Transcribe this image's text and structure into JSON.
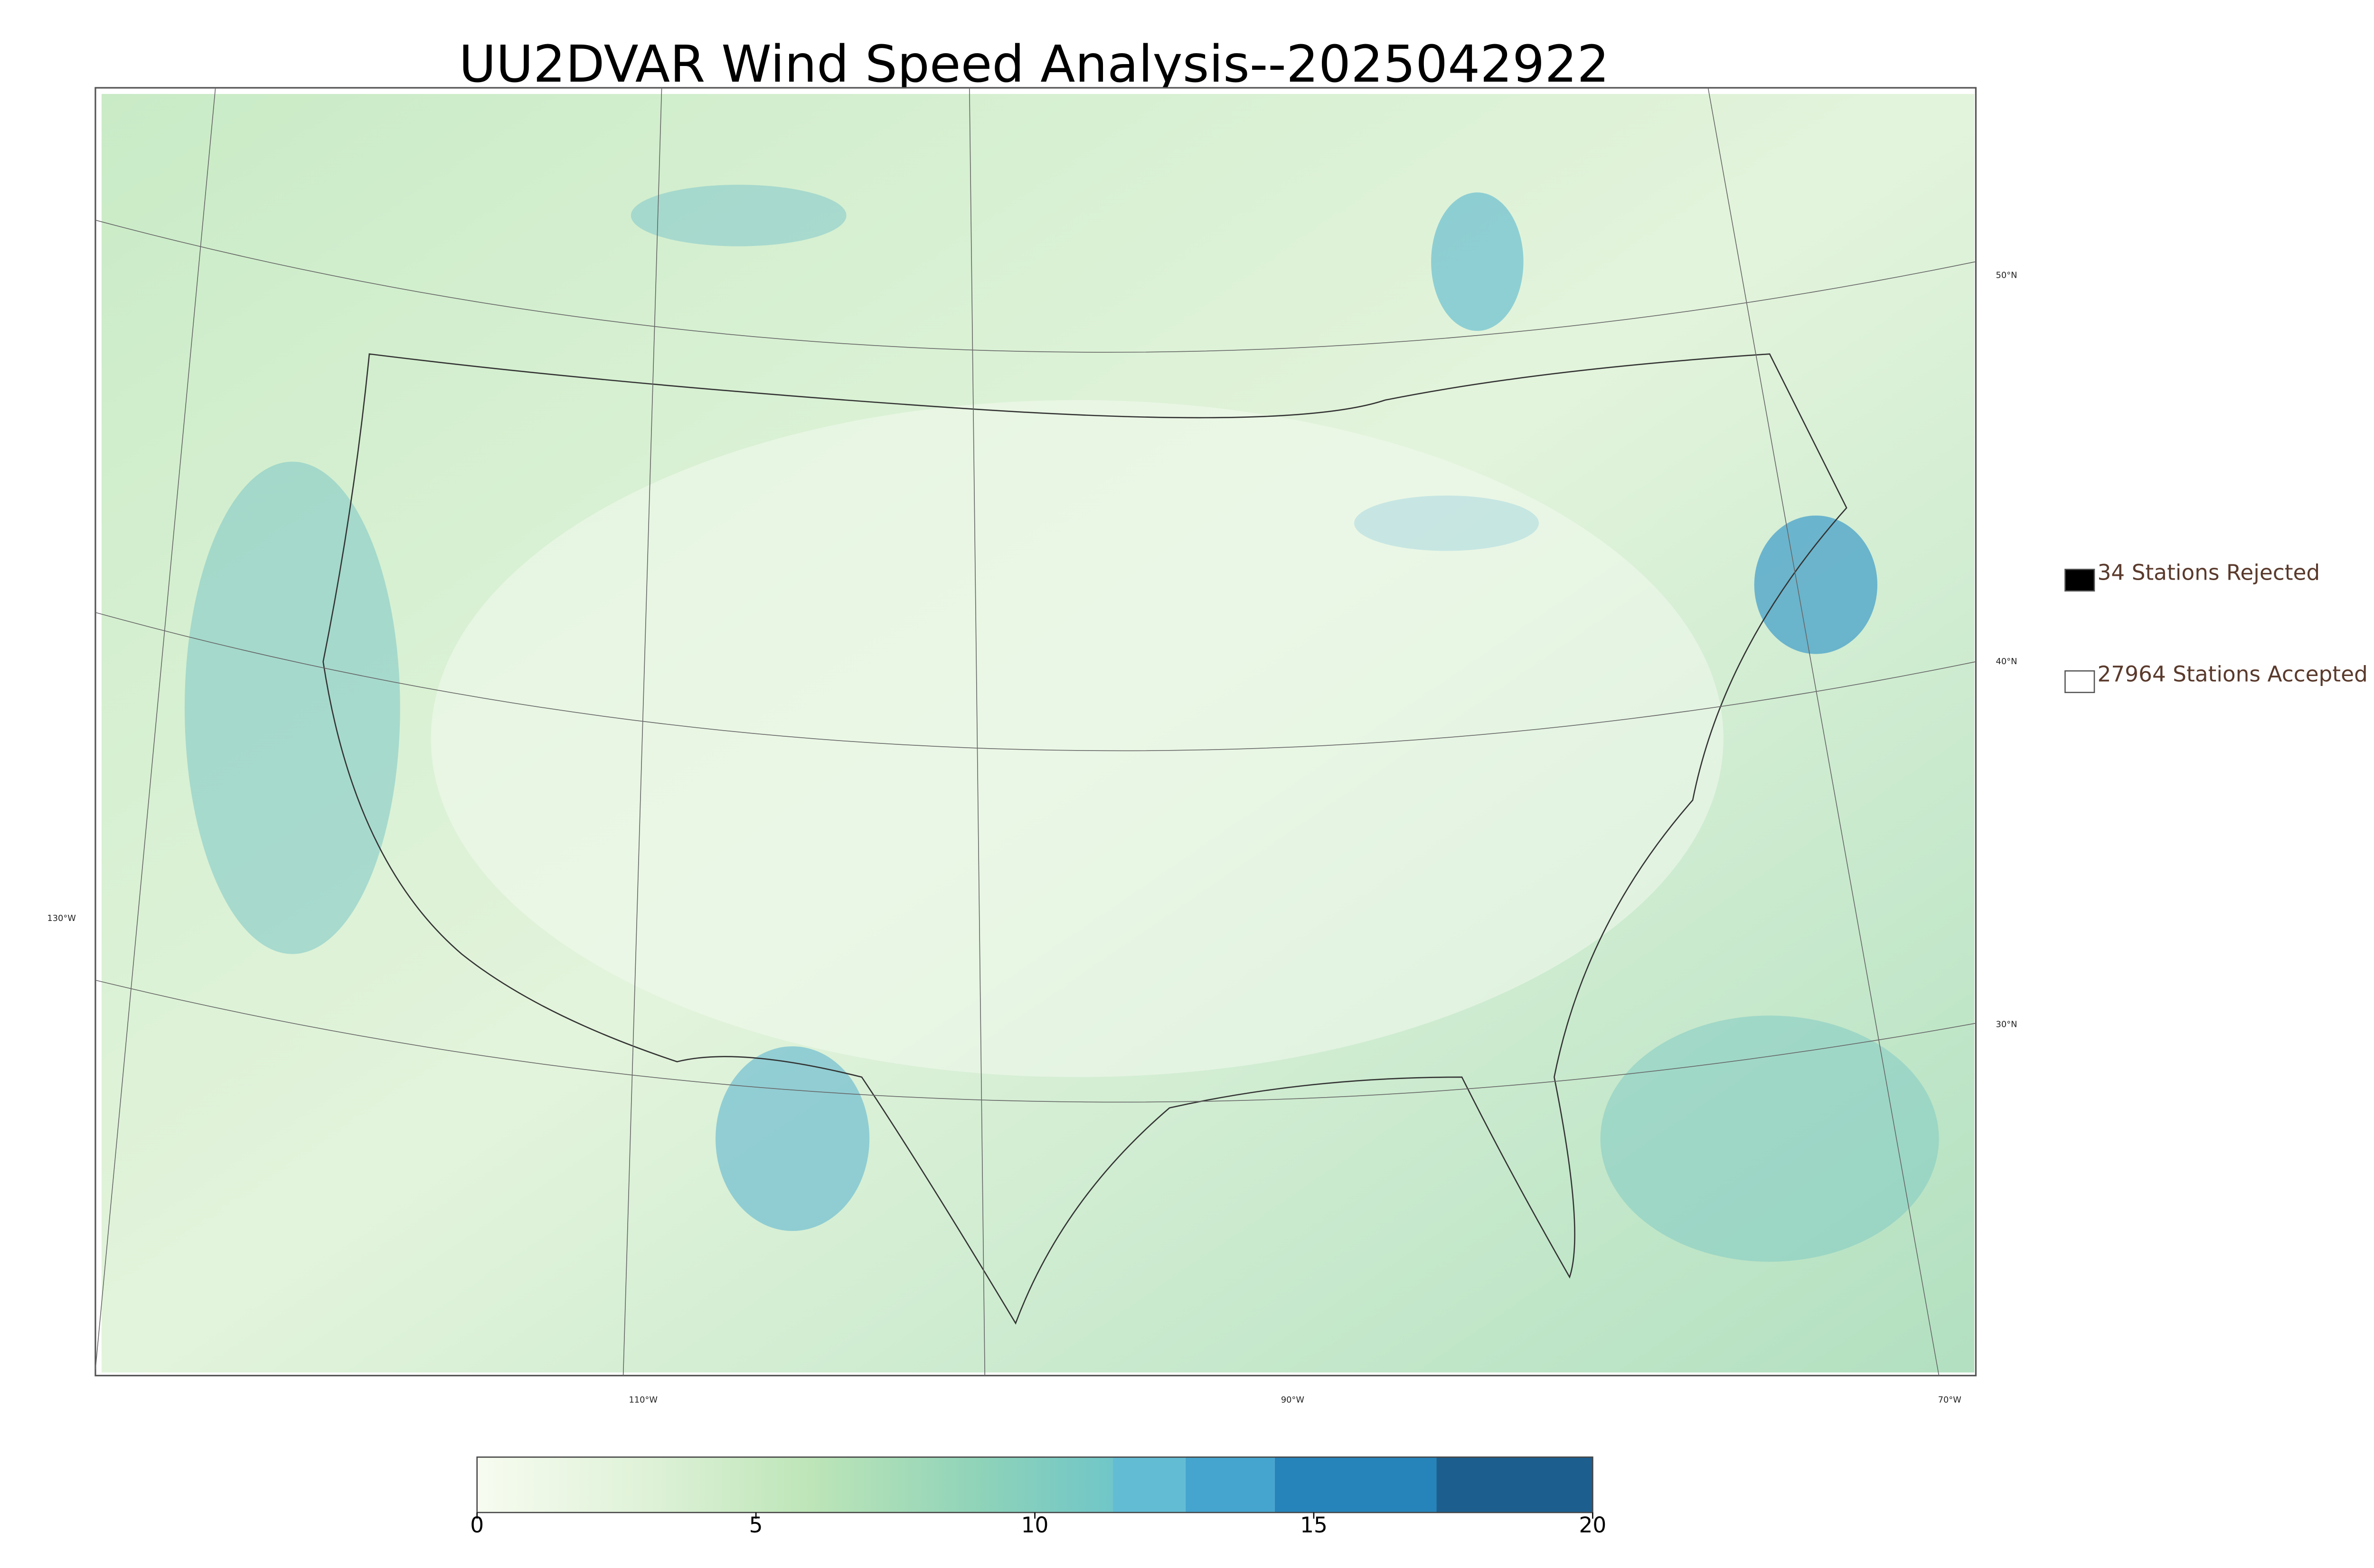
{
  "title": "UU2DVAR Wind Speed Analysis--2025042922",
  "graticule": {
    "lat_labels": [
      "50°N",
      "40°N",
      "30°N"
    ],
    "lon_labels": [
      "130°W",
      "110°W",
      "90°W",
      "70°W"
    ]
  },
  "legend": [
    {
      "label": "34 Stations Rejected",
      "fill": "#000000"
    },
    {
      "label": "27964 Stations Accepted",
      "fill": "#ffffff"
    }
  ],
  "colorbar": {
    "lim": [
      0,
      20
    ],
    "ticks": [
      0,
      5,
      10,
      15,
      20
    ],
    "gradient": [
      {
        "value": 0,
        "color": "#f7fcf0"
      },
      {
        "value": 3,
        "color": "#dff2d8"
      },
      {
        "value": 6,
        "color": "#bde5b8"
      },
      {
        "value": 9,
        "color": "#8fd3b9"
      },
      {
        "value": 11.4,
        "color": "#70c6c8"
      }
    ],
    "bands": [
      {
        "from": 11.4,
        "to": 12.7,
        "color": "#62bcd4"
      },
      {
        "from": 12.7,
        "to": 14.3,
        "color": "#45a5ce"
      },
      {
        "from": 14.3,
        "to": 17.2,
        "color": "#2684bb"
      },
      {
        "from": 17.2,
        "to": 20,
        "color": "#1c5f8f"
      }
    ]
  }
}
